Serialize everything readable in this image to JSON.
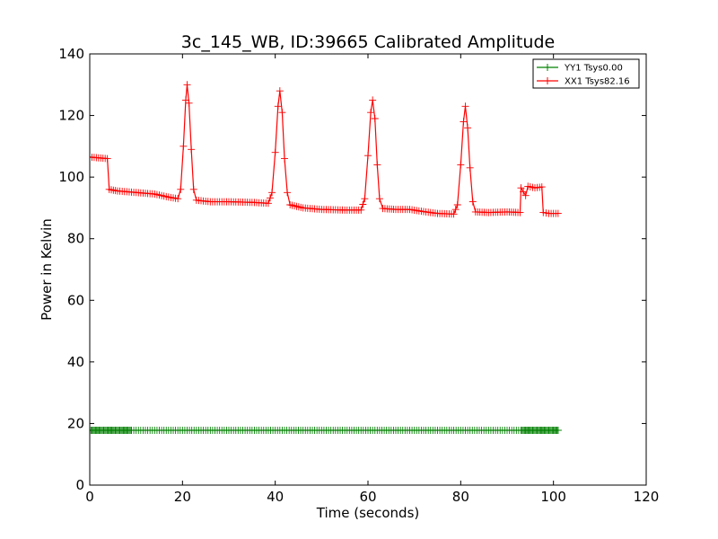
{
  "chart_data": {
    "type": "line",
    "title": "3c_145_WB, ID:39665 Calibrated Amplitude",
    "xlabel": "Time (seconds)",
    "ylabel": "Power in Kelvin",
    "xlim": [
      0,
      120
    ],
    "ylim": [
      0,
      140
    ],
    "xticks": [
      0,
      20,
      40,
      60,
      80,
      100,
      120
    ],
    "yticks": [
      0,
      20,
      40,
      60,
      80,
      100,
      120,
      140
    ],
    "grid": false,
    "legend_position": "top-right",
    "series": [
      {
        "name": "YY1 Tsys0.00",
        "color": "#008000",
        "marker": "+",
        "points": [
          [
            0,
            17.8
          ],
          [
            101,
            17.8
          ]
        ],
        "note_dense_regions": [
          [
            0,
            9
          ],
          [
            93,
            101
          ]
        ]
      },
      {
        "name": "XX1 Tsys82.16",
        "color": "#ff0000",
        "marker": "+",
        "points": [
          [
            0,
            106.5
          ],
          [
            3.8,
            106
          ],
          [
            4.2,
            96
          ],
          [
            6,
            95.5
          ],
          [
            10,
            95
          ],
          [
            14,
            94.5
          ],
          [
            17,
            93.5
          ],
          [
            19,
            93
          ],
          [
            19.6,
            96
          ],
          [
            20.2,
            110
          ],
          [
            20.7,
            125
          ],
          [
            21,
            130
          ],
          [
            21.4,
            124
          ],
          [
            21.9,
            109
          ],
          [
            22.4,
            96
          ],
          [
            23,
            92.5
          ],
          [
            26,
            92
          ],
          [
            30,
            92
          ],
          [
            35,
            91.8
          ],
          [
            38.5,
            91.5
          ],
          [
            39.3,
            95
          ],
          [
            40,
            108
          ],
          [
            40.6,
            123
          ],
          [
            41,
            128
          ],
          [
            41.5,
            121
          ],
          [
            42,
            106
          ],
          [
            42.6,
            95
          ],
          [
            43.2,
            91
          ],
          [
            46,
            90
          ],
          [
            50,
            89.5
          ],
          [
            55,
            89.3
          ],
          [
            58.5,
            89.3
          ],
          [
            59.3,
            93
          ],
          [
            60,
            107
          ],
          [
            60.6,
            121
          ],
          [
            61,
            125
          ],
          [
            61.5,
            119
          ],
          [
            62,
            104
          ],
          [
            62.5,
            93
          ],
          [
            63.2,
            89.8
          ],
          [
            66,
            89.5
          ],
          [
            69,
            89.5
          ],
          [
            72,
            88.8
          ],
          [
            75,
            88.2
          ],
          [
            78.5,
            88
          ],
          [
            79.3,
            91
          ],
          [
            80,
            104
          ],
          [
            80.6,
            118
          ],
          [
            81,
            123
          ],
          [
            81.5,
            116
          ],
          [
            82,
            103
          ],
          [
            82.6,
            92
          ],
          [
            83.2,
            88.7
          ],
          [
            86,
            88.5
          ],
          [
            90,
            88.7
          ],
          [
            92.8,
            88.5
          ],
          [
            93,
            96.5
          ],
          [
            94,
            94
          ],
          [
            94.5,
            97
          ],
          [
            96,
            96.5
          ],
          [
            97.5,
            96.8
          ],
          [
            97.8,
            88.5
          ],
          [
            99,
            88.2
          ],
          [
            101,
            88.2
          ]
        ]
      }
    ]
  }
}
